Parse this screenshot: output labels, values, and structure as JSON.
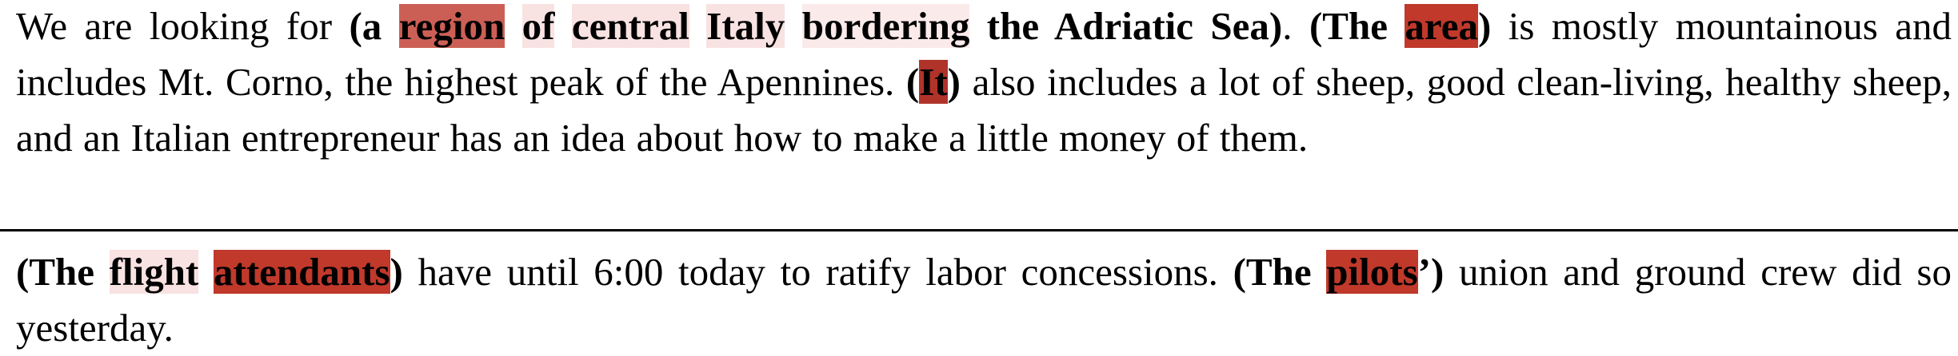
{
  "passages": [
    {
      "tokens": [
        {
          "t": "We are looking for ",
          "b": false,
          "h": null
        },
        {
          "t": "(a ",
          "b": true,
          "h": null
        },
        {
          "t": "region",
          "b": true,
          "h": 3
        },
        {
          "t": " ",
          "b": true,
          "h": null
        },
        {
          "t": "of",
          "b": true,
          "h": 1
        },
        {
          "t": " ",
          "b": true,
          "h": null
        },
        {
          "t": "central",
          "b": true,
          "h": 1
        },
        {
          "t": " ",
          "b": true,
          "h": null
        },
        {
          "t": "Italy",
          "b": true,
          "h": 1
        },
        {
          "t": " ",
          "b": true,
          "h": null
        },
        {
          "t": "bordering",
          "b": true,
          "h": 0
        },
        {
          "t": " the Adriatic Sea)",
          "b": true,
          "h": null
        },
        {
          "t": ". ",
          "b": false,
          "h": null
        },
        {
          "t": "(The ",
          "b": true,
          "h": null
        },
        {
          "t": "area",
          "b": true,
          "h": 4
        },
        {
          "t": ")",
          "b": true,
          "h": null
        },
        {
          "t": " is mostly mountainous and includes Mt. Corno, the highest peak of the Apennines. ",
          "b": false,
          "h": null
        },
        {
          "t": "(",
          "b": true,
          "h": null
        },
        {
          "t": "It",
          "b": true,
          "h": 5
        },
        {
          "t": ")",
          "b": true,
          "h": null
        },
        {
          "t": " also includes a lot of sheep, good clean-living, healthy sheep, and an Italian entrepreneur has an idea about how to make a little money of them.",
          "b": false,
          "h": null
        }
      ]
    },
    {
      "tokens": [
        {
          "t": "(The ",
          "b": true,
          "h": null
        },
        {
          "t": "flight",
          "b": true,
          "h": 1
        },
        {
          "t": " ",
          "b": true,
          "h": null
        },
        {
          "t": "attendants",
          "b": true,
          "h": 4
        },
        {
          "t": ")",
          "b": true,
          "h": null
        },
        {
          "t": " have until 6:00 today to ratify labor concessions. ",
          "b": false,
          "h": null
        },
        {
          "t": "(The ",
          "b": true,
          "h": null
        },
        {
          "t": "pilots",
          "b": true,
          "h": 4
        },
        {
          "t": "’)",
          "b": true,
          "h": null
        },
        {
          "t": " union and ground crew did so yesterday.",
          "b": false,
          "h": null
        }
      ]
    }
  ],
  "highlight_colors": [
    "#fbeaea",
    "#f8e2e2",
    "#e7a29c",
    "#cc5f55",
    "#c0392b",
    "#b0332a"
  ]
}
